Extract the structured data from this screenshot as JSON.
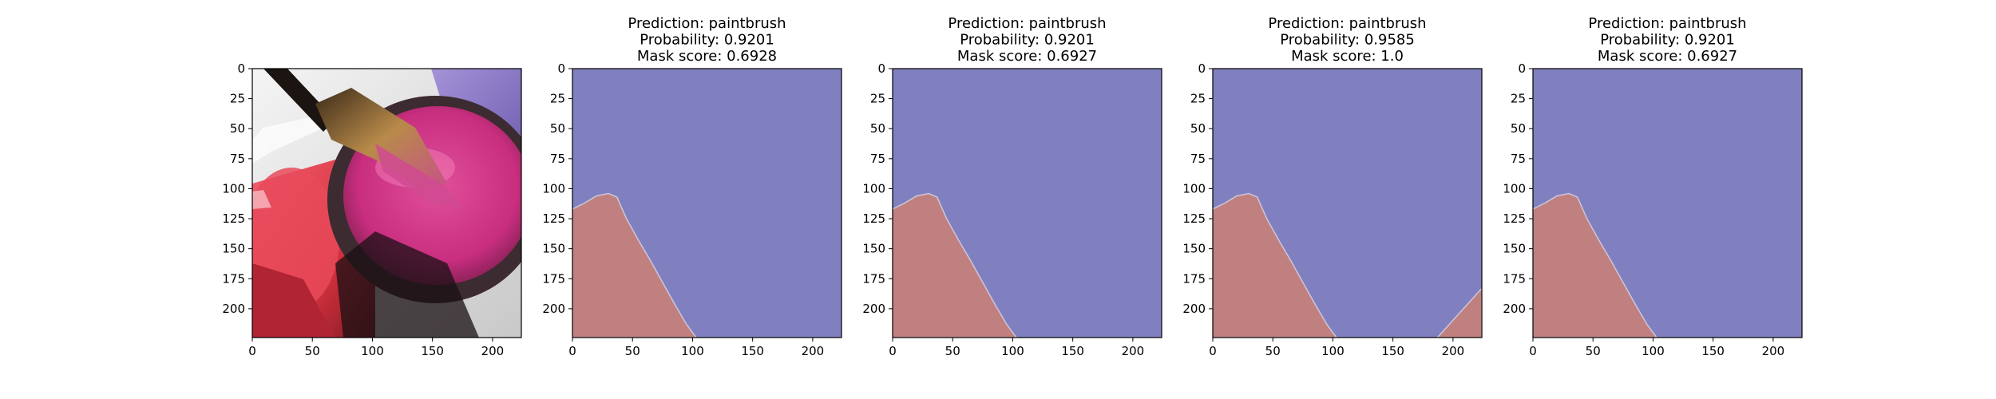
{
  "chart_data": [
    {
      "type": "image",
      "content": "photo of a paintbrush dipped in magenta/pink watercolor paint pan",
      "title_lines": [],
      "xlim": [
        0,
        224
      ],
      "ylim": [
        224,
        0
      ],
      "xticks": [
        0,
        50,
        100,
        150,
        200
      ],
      "yticks": [
        0,
        25,
        50,
        75,
        100,
        125,
        150,
        175,
        200
      ]
    },
    {
      "type": "heatmap",
      "title_lines": [
        "Prediction: paintbrush",
        "Probability: 0.9201",
        "Mask score: 0.6928"
      ],
      "xlim": [
        0,
        224
      ],
      "ylim": [
        224,
        0
      ],
      "xticks": [
        0,
        50,
        100,
        150,
        200
      ],
      "yticks": [
        0,
        25,
        50,
        75,
        100,
        125,
        150,
        175,
        200
      ],
      "colors": {
        "masked": "#c08080",
        "background": "#8080c0"
      },
      "masked_regions": [
        [
          [
            0,
            117
          ],
          [
            10,
            112
          ],
          [
            20,
            106
          ],
          [
            30,
            104
          ],
          [
            37,
            107
          ],
          [
            45,
            125
          ],
          [
            55,
            143
          ],
          [
            65,
            160
          ],
          [
            75,
            178
          ],
          [
            85,
            196
          ],
          [
            95,
            213
          ],
          [
            103,
            224
          ],
          [
            0,
            224
          ]
        ]
      ]
    },
    {
      "type": "heatmap",
      "title_lines": [
        "Prediction: paintbrush",
        "Probability: 0.9201",
        "Mask score: 0.6927"
      ],
      "xlim": [
        0,
        224
      ],
      "ylim": [
        224,
        0
      ],
      "xticks": [
        0,
        50,
        100,
        150,
        200
      ],
      "yticks": [
        0,
        25,
        50,
        75,
        100,
        125,
        150,
        175,
        200
      ],
      "colors": {
        "masked": "#c08080",
        "background": "#8080c0"
      },
      "masked_regions": [
        [
          [
            0,
            117
          ],
          [
            10,
            112
          ],
          [
            20,
            106
          ],
          [
            30,
            104
          ],
          [
            37,
            107
          ],
          [
            45,
            125
          ],
          [
            55,
            143
          ],
          [
            65,
            160
          ],
          [
            75,
            178
          ],
          [
            85,
            196
          ],
          [
            95,
            213
          ],
          [
            103,
            224
          ],
          [
            0,
            224
          ]
        ]
      ]
    },
    {
      "type": "heatmap",
      "title_lines": [
        "Prediction: paintbrush",
        "Probability: 0.9585",
        "Mask score: 1.0"
      ],
      "xlim": [
        0,
        224
      ],
      "ylim": [
        224,
        0
      ],
      "xticks": [
        0,
        50,
        100,
        150,
        200
      ],
      "yticks": [
        0,
        25,
        50,
        75,
        100,
        125,
        150,
        175,
        200
      ],
      "colors": {
        "masked": "#c08080",
        "background": "#8080c0"
      },
      "masked_regions": [
        [
          [
            0,
            117
          ],
          [
            10,
            112
          ],
          [
            20,
            106
          ],
          [
            30,
            104
          ],
          [
            37,
            107
          ],
          [
            45,
            125
          ],
          [
            55,
            143
          ],
          [
            65,
            160
          ],
          [
            75,
            178
          ],
          [
            85,
            196
          ],
          [
            95,
            213
          ],
          [
            103,
            224
          ],
          [
            0,
            224
          ]
        ],
        [
          [
            187,
            224
          ],
          [
            224,
            183
          ],
          [
            224,
            224
          ]
        ]
      ]
    },
    {
      "type": "heatmap",
      "title_lines": [
        "Prediction: paintbrush",
        "Probability: 0.9201",
        "Mask score: 0.6927"
      ],
      "xlim": [
        0,
        224
      ],
      "ylim": [
        224,
        0
      ],
      "xticks": [
        0,
        50,
        100,
        150,
        200
      ],
      "yticks": [
        0,
        25,
        50,
        75,
        100,
        125,
        150,
        175,
        200
      ],
      "colors": {
        "masked": "#c08080",
        "background": "#8080c0"
      },
      "masked_regions": [
        [
          [
            0,
            117
          ],
          [
            10,
            112
          ],
          [
            20,
            106
          ],
          [
            30,
            104
          ],
          [
            37,
            107
          ],
          [
            45,
            125
          ],
          [
            55,
            143
          ],
          [
            65,
            160
          ],
          [
            75,
            178
          ],
          [
            85,
            196
          ],
          [
            95,
            213
          ],
          [
            103,
            224
          ],
          [
            0,
            224
          ]
        ]
      ]
    }
  ]
}
